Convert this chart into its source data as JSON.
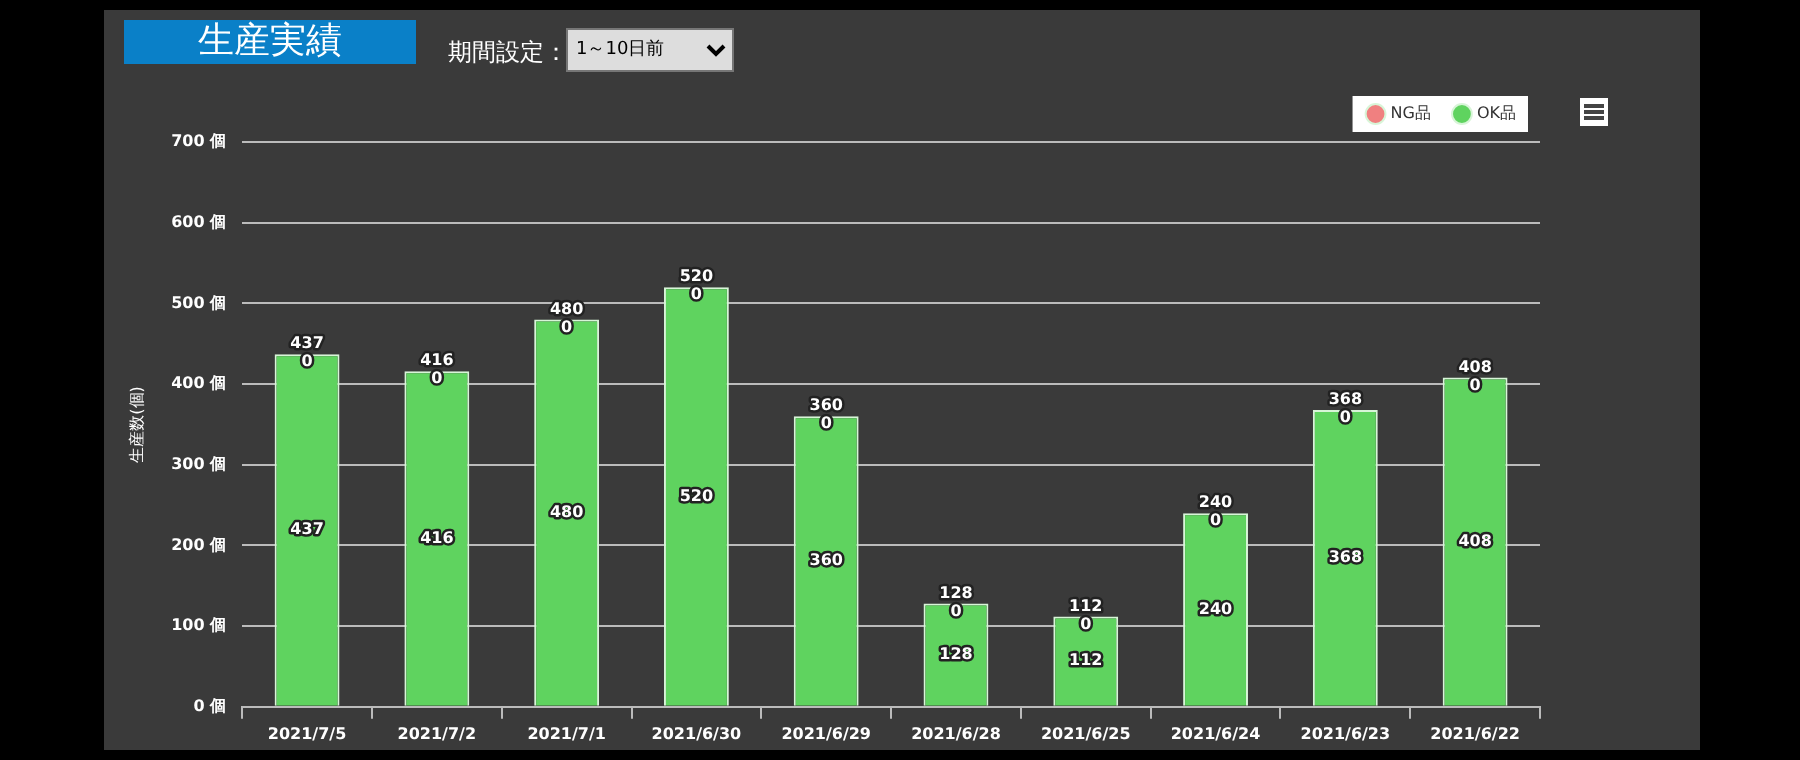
{
  "chart_data": {
    "type": "bar",
    "title": "生産実績",
    "ylabel": "生産数(個)",
    "annotations": [
      "期間設定：",
      "1～10日前"
    ],
    "categories": [
      "2021/7/5",
      "2021/7/2",
      "2021/7/1",
      "2021/6/30",
      "2021/6/29",
      "2021/6/28",
      "2021/6/25",
      "2021/6/24",
      "2021/6/23",
      "2021/6/22"
    ],
    "series": [
      {
        "name": "OK品",
        "color": "#5fd35f",
        "values": [
          437,
          416,
          480,
          520,
          360,
          128,
          112,
          240,
          368,
          408
        ]
      },
      {
        "name": "NG品",
        "color": "#f08080",
        "values": [
          0,
          0,
          0,
          0,
          0,
          0,
          0,
          0,
          0,
          0
        ]
      }
    ],
    "stacked": true,
    "data_labels": true,
    "totals": [
      "437",
      "416",
      "480",
      "520",
      "360",
      "128",
      "112",
      "240",
      "368",
      "408"
    ],
    "ylim": [
      0,
      700
    ],
    "yticks": [
      {
        "value": 0,
        "label": "0 個"
      },
      {
        "value": 100,
        "label": "100 個"
      },
      {
        "value": 200,
        "label": "200 個"
      },
      {
        "value": 300,
        "label": "300 個"
      },
      {
        "value": 400,
        "label": "400 個"
      },
      {
        "value": 500,
        "label": "500 個"
      },
      {
        "value": 600,
        "label": "600 個"
      },
      {
        "value": 700,
        "label": "700 個"
      }
    ],
    "grid": "y",
    "legend": "top right"
  }
}
